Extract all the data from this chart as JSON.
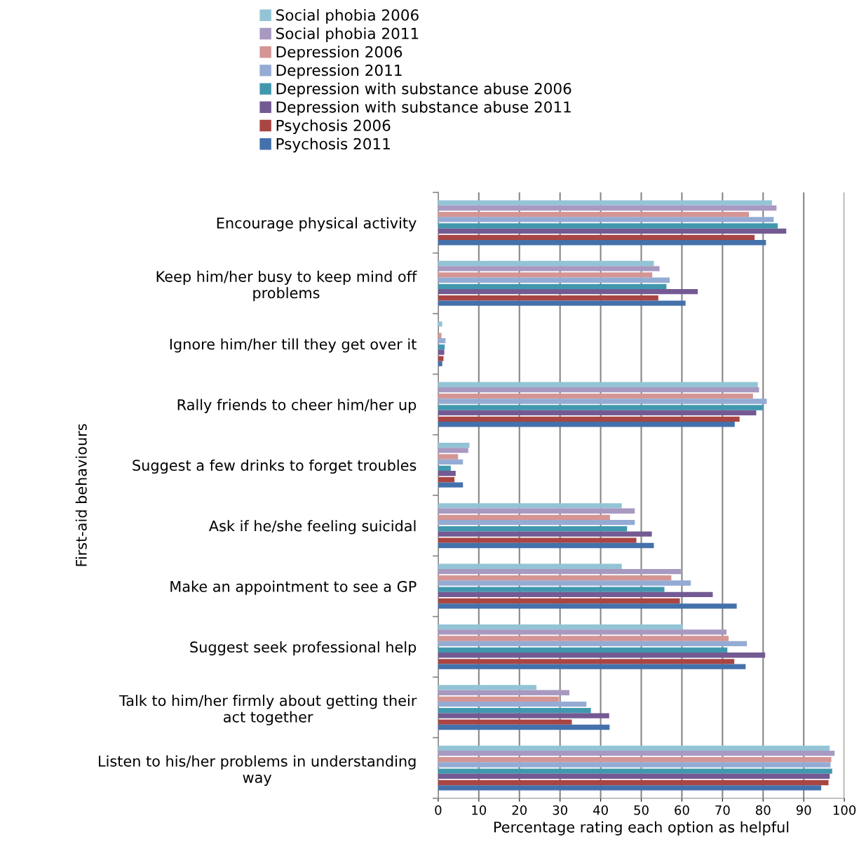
{
  "chart_data": {
    "type": "bar",
    "orientation": "horizontal",
    "xlabel": "Percentage rating each option as helpful",
    "ylabel": "First-aid behaviours",
    "categories": [
      "Encourage physical activity",
      "Keep him/her busy to keep mind off\nproblems",
      "Ignore him/her till they get over it",
      "Rally friends to cheer him/her up",
      "Suggest a few drinks to forget troubles",
      "Ask if he/she feeling suicidal",
      "Make an appointment to see a GP",
      "Suggest seek professional help",
      "Talk to him/her firmly about getting their\nact together",
      "Listen to his/her problems in understanding\nway"
    ],
    "series": [
      {
        "name": "Social phobia 2006",
        "color": "#93c4d6",
        "values": [
          82.2,
          53.1,
          1.0,
          78.7,
          7.7,
          45.2,
          45.2,
          60.2,
          24.2,
          96.4
        ]
      },
      {
        "name": "Social phobia 2011",
        "color": "#a899c1",
        "values": [
          83.3,
          54.5,
          0,
          79.0,
          7.4,
          48.4,
          59.8,
          71.0,
          32.3,
          97.6
        ]
      },
      {
        "name": "Depression 2006",
        "color": "#d49594",
        "values": [
          76.5,
          52.7,
          0.8,
          77.5,
          4.9,
          42.3,
          57.4,
          71.5,
          29.7,
          96.8
        ]
      },
      {
        "name": "Depression 2011",
        "color": "#94abd4",
        "values": [
          82.6,
          57.0,
          1.8,
          80.9,
          6.1,
          48.4,
          62.2,
          76.0,
          36.5,
          96.6
        ]
      },
      {
        "name": "Depression with substance abuse 2006",
        "color": "#4198ae",
        "values": [
          83.6,
          56.2,
          1.6,
          80.1,
          3.1,
          46.5,
          55.7,
          71.2,
          37.6,
          97.0
        ]
      },
      {
        "name": "Depression with substance abuse 2011",
        "color": "#735a93",
        "values": [
          85.7,
          63.9,
          1.5,
          78.3,
          4.3,
          52.6,
          67.6,
          80.5,
          42.1,
          96.4
        ]
      },
      {
        "name": "Psychosis 2006",
        "color": "#a94543",
        "values": [
          77.9,
          54.2,
          1.3,
          74.2,
          4.0,
          48.8,
          59.5,
          72.9,
          32.9,
          96.1
        ]
      },
      {
        "name": "Psychosis 2011",
        "color": "#4471ab",
        "values": [
          80.7,
          60.9,
          1.0,
          73.0,
          6.1,
          53.1,
          73.5,
          75.7,
          42.2,
          94.3
        ]
      }
    ],
    "xlim": [
      0,
      100
    ],
    "xticks": [
      0,
      10,
      20,
      30,
      40,
      50,
      60,
      70,
      80,
      90,
      100
    ],
    "grid": "x",
    "legend": "top"
  }
}
